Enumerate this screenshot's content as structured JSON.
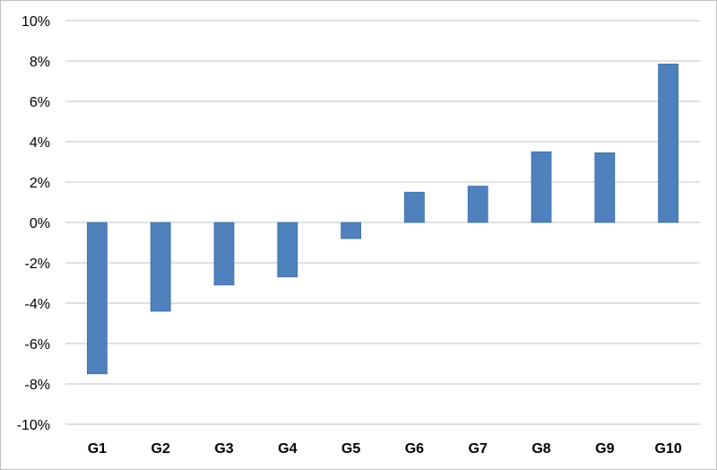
{
  "chart_data": {
    "type": "bar",
    "categories": [
      "G1",
      "G2",
      "G3",
      "G4",
      "G5",
      "G6",
      "G7",
      "G8",
      "G9",
      "G10"
    ],
    "values": [
      -7.5,
      -4.4,
      -3.1,
      -2.7,
      -0.8,
      1.5,
      1.8,
      3.5,
      3.45,
      7.85
    ],
    "ylim": [
      -10,
      10
    ],
    "ytick_step": 2,
    "ytick_labels": [
      "10%",
      "8%",
      "6%",
      "4%",
      "2%",
      "0%",
      "-2%",
      "-4%",
      "-6%",
      "-8%",
      "-10%"
    ],
    "title": "",
    "xlabel": "",
    "ylabel": "",
    "grid": true,
    "colors": {
      "bar_fill": "#4f81bd",
      "bar_stroke": "#3f6fa8",
      "grid": "#c0c0c0"
    }
  }
}
